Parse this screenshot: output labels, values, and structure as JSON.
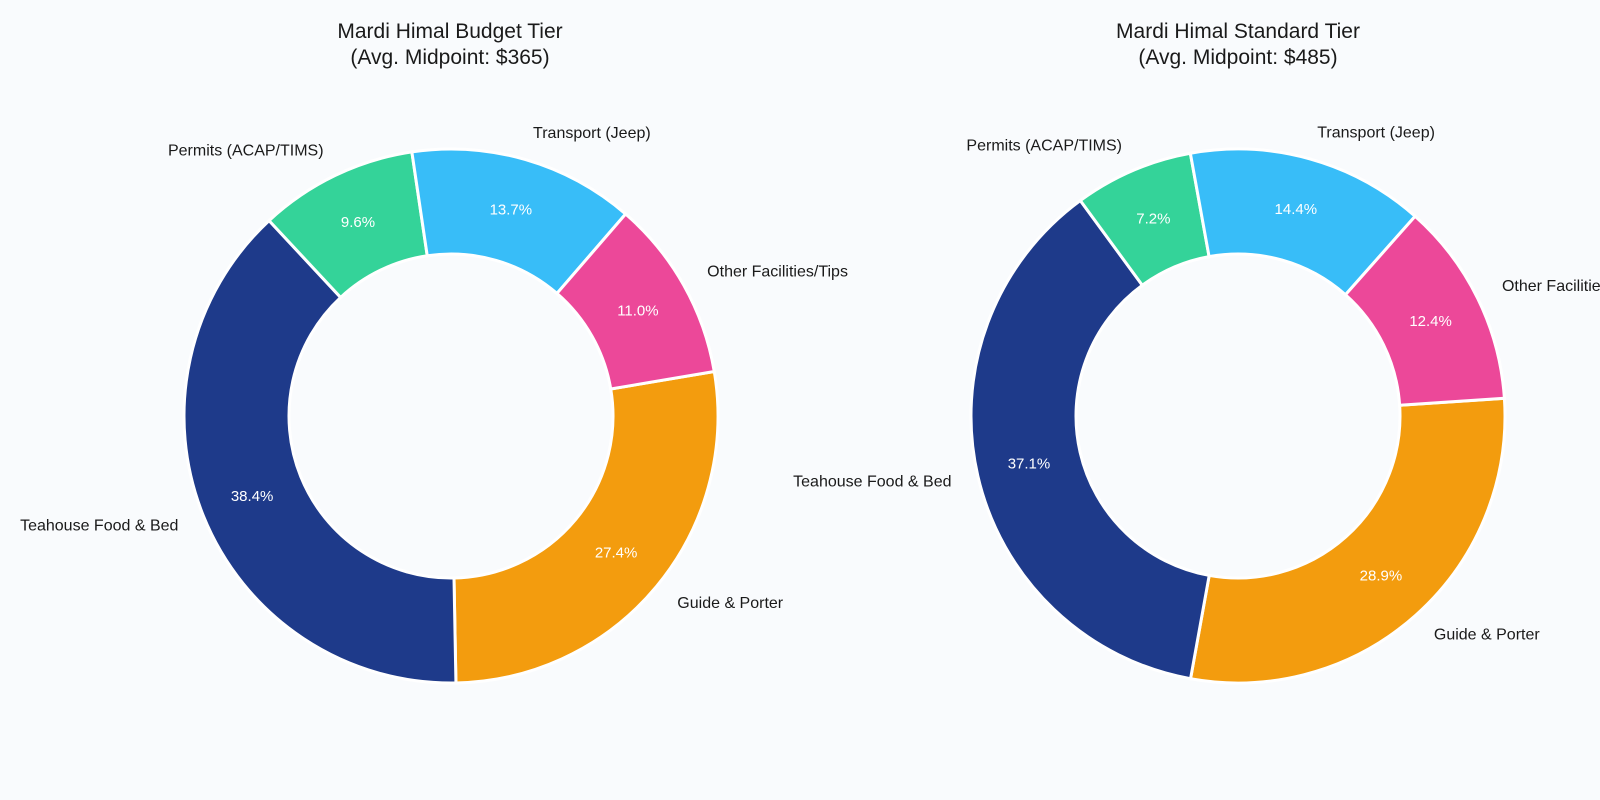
{
  "chart_data": [
    {
      "type": "pie",
      "title": "Mardi Himal Budget Tier",
      "subtitle": "(Avg. Midpoint: $365)",
      "slices": [
        {
          "label": "Guide & Porter",
          "value": 27.4,
          "display": "27.4%",
          "color": "#f39c0e"
        },
        {
          "label": "Teahouse Food & Bed",
          "value": 38.4,
          "display": "38.4%",
          "color": "#1e3a8a"
        },
        {
          "label": "Permits (ACAP/TIMS)",
          "value": 9.6,
          "display": "9.6%",
          "color": "#34d399"
        },
        {
          "label": "Transport (Jeep)",
          "value": 13.7,
          "display": "13.7%",
          "color": "#38bdf8"
        },
        {
          "label": "Other Facilities/Tips",
          "value": 11.0,
          "display": "11.0%",
          "color": "#ec4899"
        }
      ]
    },
    {
      "type": "pie",
      "title": "Mardi Himal Standard Tier",
      "subtitle": "(Avg. Midpoint: $485)",
      "slices": [
        {
          "label": "Guide & Porter",
          "value": 28.9,
          "display": "28.9%",
          "color": "#f39c0e"
        },
        {
          "label": "Teahouse Food & Bed",
          "value": 37.1,
          "display": "37.1%",
          "color": "#1e3a8a"
        },
        {
          "label": "Permits (ACAP/TIMS)",
          "value": 7.2,
          "display": "7.2%",
          "color": "#34d399"
        },
        {
          "label": "Transport (Jeep)",
          "value": 14.4,
          "display": "14.4%",
          "color": "#38bdf8"
        },
        {
          "label": "Other Facilities/Tips",
          "value": 12.4,
          "display": "12.4%",
          "color": "#ec4899"
        }
      ]
    }
  ]
}
